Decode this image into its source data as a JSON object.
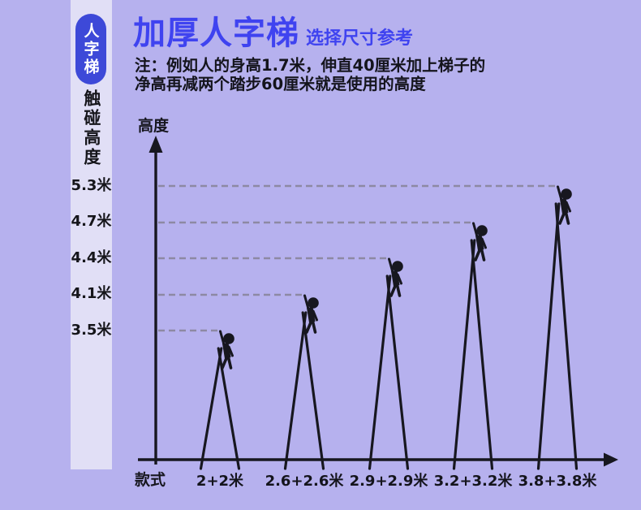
{
  "sidebar": {
    "badge": "人字梯",
    "heading": "触碰高度"
  },
  "header": {
    "title": "加厚人字梯",
    "subtitle": "选择尺寸参考",
    "note_line1": "注：例如人的身高1.7米，伸直40厘米加上梯子的",
    "note_line2": "净高再减两个踏步60厘米就是使用的高度"
  },
  "colors": {
    "background": "#b6b1ee",
    "strip": "#e1dff6",
    "badge_blue": "#3d49d8",
    "title_blue": "#3f43f0",
    "ink": "#17171f",
    "dash_gray": "#8d89a3"
  },
  "chart_data": {
    "type": "bar",
    "style_hint": "pictorial ladder chart: each category drawn as an A-frame ladder with a person on top touching a dashed leader line to the y-axis",
    "title": "加厚人字梯",
    "subtitle": "选择尺寸参考",
    "note": "注：例如人的身高1.7米，伸直40厘米加上梯子的净高再减两个踏步60厘米就是使用的高度",
    "xlabel": "款式",
    "ylabel": "高度",
    "categories": [
      "2+2米",
      "2.6+2.6米",
      "2.9+2.9米",
      "3.2+3.2米",
      "3.8+3.8米"
    ],
    "values": [
      3.5,
      4.1,
      4.4,
      4.7,
      5.3
    ],
    "value_labels": [
      "3.5米",
      "4.1米",
      "4.4米",
      "4.7米",
      "5.3米"
    ],
    "y_tick_labels_top_to_bottom": [
      "5.3米",
      "4.7米",
      "4.4米",
      "4.1米",
      "3.5米"
    ],
    "ylim": [
      0,
      5.8
    ],
    "grid": "off",
    "legend": "none",
    "annotations": "dashed horizontal leader lines from y-axis to each person's raised hand"
  }
}
